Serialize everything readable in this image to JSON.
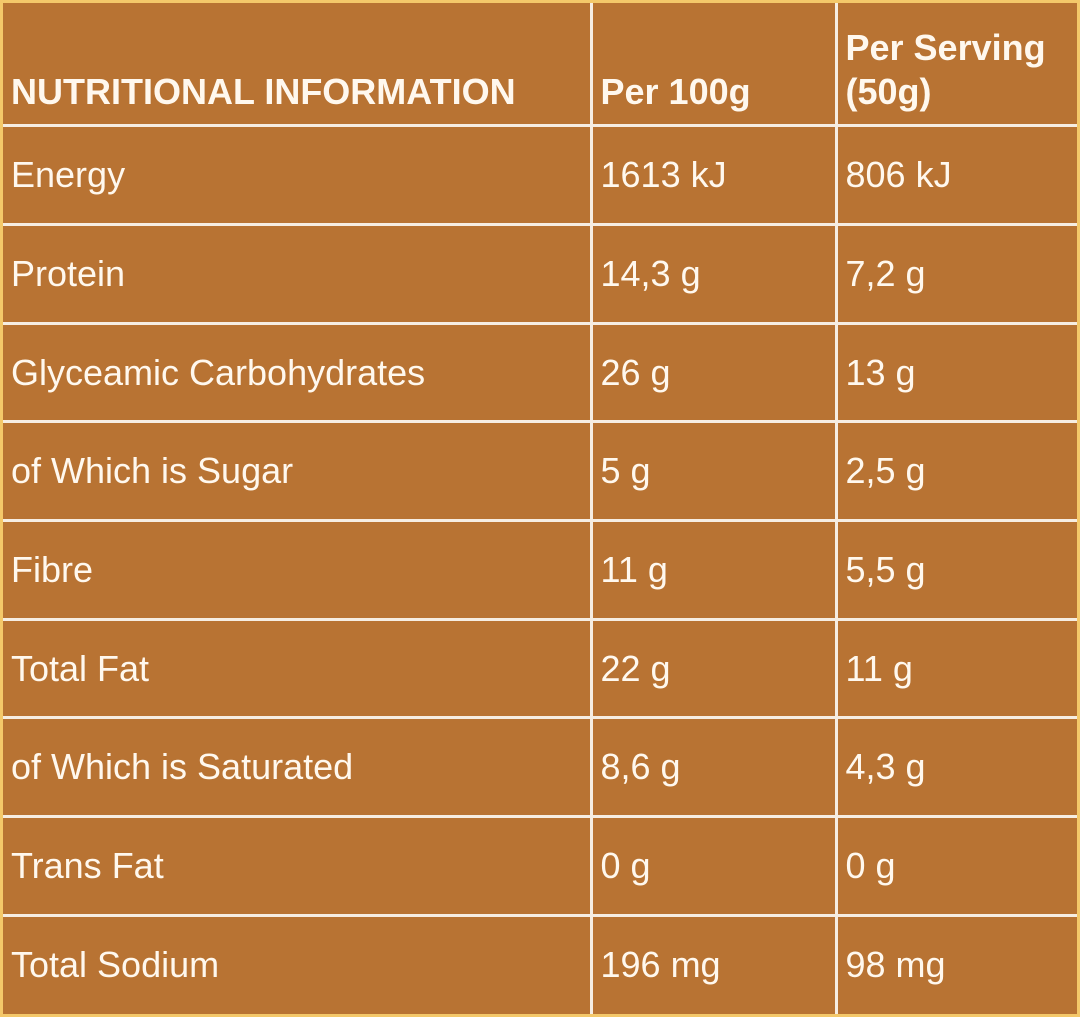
{
  "header": {
    "title": "NUTRITIONAL INFORMATION",
    "per_100g": "Per 100g",
    "per_serving": "Per Serving (50g)"
  },
  "rows": [
    [
      "Energy",
      "1613 kJ",
      "806 kJ"
    ],
    [
      "Protein",
      "14,3 g",
      "7,2 g"
    ],
    [
      "Glyceamic Carbohydrates",
      "26 g",
      "13 g"
    ],
    [
      "of Which is Sugar",
      "5 g",
      "2,5 g"
    ],
    [
      "Fibre",
      "11 g",
      "5,5 g"
    ],
    [
      "Total Fat",
      "22 g",
      "11 g"
    ],
    [
      "of Which is Saturated",
      "8,6 g",
      "4,3 g"
    ],
    [
      "Trans Fat",
      "0 g",
      "0 g"
    ],
    [
      "Total Sodium",
      "196 mg",
      "98 mg"
    ]
  ]
}
